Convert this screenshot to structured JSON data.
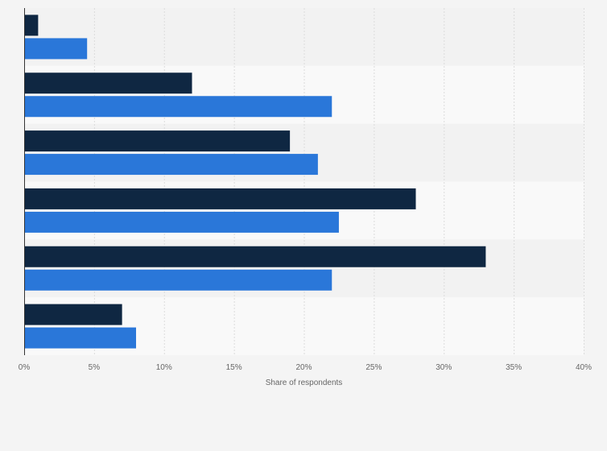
{
  "chart_data": {
    "type": "bar",
    "orientation": "horizontal",
    "categories": [
      "",
      "",
      "",
      "",
      "",
      ""
    ],
    "series": [
      {
        "values": [
          1,
          12,
          19,
          28,
          33,
          7
        ],
        "color": "#0f2742"
      },
      {
        "values": [
          4.5,
          22,
          21,
          22.5,
          22,
          8
        ],
        "color": "#2a77d9"
      }
    ],
    "xlim": [
      0,
      40
    ],
    "xticks": [
      0,
      5,
      10,
      15,
      20,
      25,
      30,
      35,
      40
    ],
    "tick_labels": [
      "0%",
      "5%",
      "10%",
      "15%",
      "20%",
      "25%",
      "30%",
      "35%",
      "40%"
    ],
    "xlabel": "Share of respondents",
    "ylabel": "",
    "title": "",
    "grid": true,
    "legend": "none"
  },
  "colors": {
    "band_dark": "#f2f2f2",
    "band_light": "#f9f9f9",
    "gridline": "#dcdcdc",
    "axis": "#333333"
  }
}
